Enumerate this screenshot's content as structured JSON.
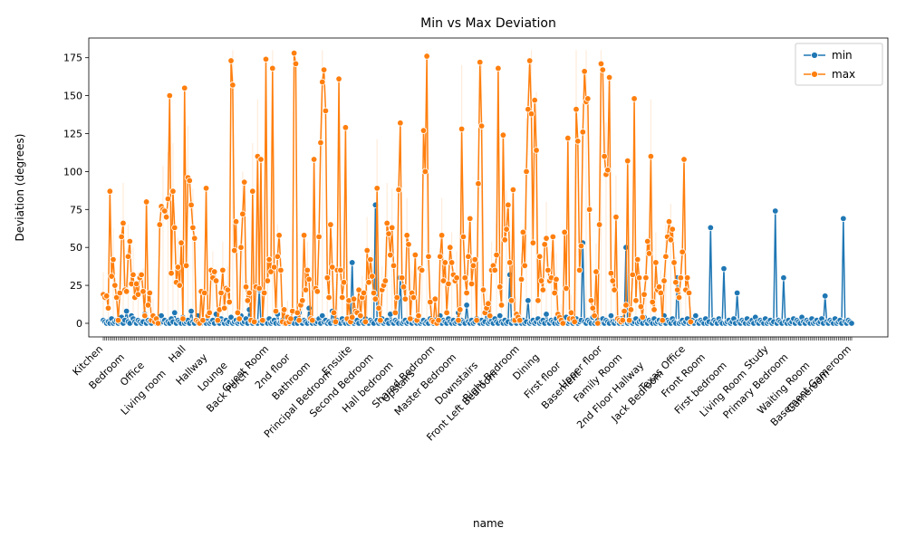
{
  "chart_data": {
    "type": "line",
    "title": "Min vs Max Deviation",
    "xlabel": "name",
    "ylabel": "Deviation (degrees)",
    "ylim": [
      -8.95,
      187.95
    ],
    "yticks": [
      0,
      25,
      50,
      75,
      100,
      125,
      150,
      175
    ],
    "grid": false,
    "legend_position": "top-right",
    "categories_sample": [
      "Kitchen",
      "Bedroom",
      "Office",
      "Living room",
      "Hall",
      "Hallway",
      "Lounge",
      "Back Porch",
      "Guest Room",
      "2nd floor",
      "Bathroom",
      "Principal Bedroom",
      "Ensuite",
      "Second Bedroom",
      "Hall bedroom",
      "Upstairs",
      "Shared Bedroom",
      "Master Bedroom",
      "Downstairs",
      "Front Left Bedroom",
      "Right Bedroom",
      "Dining",
      "First floor",
      "Basement",
      "Upper floor",
      "Family Room",
      "2nd Floor Hallway",
      "Jack Bedroom",
      "Texas Office",
      "Front Room",
      "First bedroom",
      "Living Room",
      "Study",
      "Primary Bedroom",
      "Waiting Room",
      "Gameroom",
      "Basement Gameroom"
    ],
    "series": [
      {
        "name": "min",
        "color": "#1f77b4",
        "values": [
          2,
          1,
          0,
          1,
          0,
          3,
          0,
          1,
          2,
          0,
          1,
          4,
          0,
          2,
          8,
          1,
          0,
          5,
          3,
          1,
          0,
          2,
          1,
          0,
          1,
          6,
          0,
          2,
          1,
          0,
          3,
          2,
          0,
          1,
          0,
          5,
          1,
          2,
          0,
          1,
          0,
          3,
          1,
          7,
          0,
          2,
          1,
          0,
          4,
          0,
          1,
          2,
          0,
          8,
          1,
          0,
          2,
          5,
          1,
          0,
          2,
          1,
          0,
          3,
          0,
          1,
          2,
          0,
          6,
          1,
          0,
          3,
          1,
          0,
          2,
          0,
          1,
          4,
          0,
          1,
          2,
          0,
          1,
          5,
          0,
          1,
          3,
          0,
          9,
          1,
          0,
          2,
          1,
          0,
          22,
          1,
          0,
          2,
          1,
          0,
          3,
          0,
          1,
          2,
          0,
          6,
          0,
          1,
          2,
          0,
          4,
          1,
          0,
          2,
          1,
          0,
          3,
          0,
          7,
          1,
          0,
          2,
          1,
          0,
          10,
          1,
          0,
          2,
          0,
          1,
          3,
          0,
          5,
          1,
          2,
          0,
          1,
          0,
          8,
          1,
          0,
          2,
          1,
          0,
          3,
          1,
          0,
          2,
          0,
          1,
          40,
          0,
          1,
          2,
          0,
          5,
          1,
          0,
          3,
          1,
          0,
          2,
          1,
          0,
          78,
          2,
          0,
          1,
          3,
          0,
          1,
          2,
          0,
          6,
          1,
          0,
          2,
          1,
          0,
          30,
          0,
          1,
          2,
          0,
          1,
          3,
          0,
          2,
          1,
          0,
          4,
          0,
          1,
          2,
          0,
          1,
          0,
          3,
          1,
          0,
          2,
          0,
          1,
          5,
          0,
          2,
          1,
          0,
          3,
          1,
          0,
          2,
          0,
          1,
          7,
          0,
          2,
          1,
          0,
          12,
          1,
          0,
          2,
          0,
          1,
          3,
          1,
          0,
          2,
          0,
          1,
          8,
          0,
          1,
          2,
          0,
          3,
          1,
          0,
          5,
          1,
          0,
          2,
          0,
          1,
          32,
          0,
          2,
          1,
          0,
          3,
          1,
          0,
          2,
          0,
          1,
          15,
          0,
          1,
          2,
          0,
          1,
          3,
          0,
          1,
          2,
          0,
          6,
          1,
          0,
          2,
          1,
          0,
          3,
          0,
          1,
          2,
          0,
          1,
          4,
          0,
          1,
          2,
          0,
          1,
          3,
          0,
          1,
          2,
          53,
          1,
          0,
          2,
          1,
          0,
          4,
          0,
          1,
          2,
          0,
          1,
          3,
          0,
          2,
          1,
          0,
          5,
          1,
          0,
          2,
          1,
          0,
          3,
          0,
          1,
          50,
          0,
          1,
          2,
          0,
          1,
          3,
          0,
          1,
          2,
          0,
          4,
          1,
          0,
          2,
          1,
          0,
          3,
          0,
          1,
          2,
          0,
          1,
          5,
          0,
          2,
          1,
          0,
          3,
          1,
          0,
          30,
          0,
          1,
          2,
          0,
          1,
          3,
          0,
          1,
          2,
          0,
          5,
          1,
          0,
          2,
          1,
          0,
          3,
          0,
          1,
          63,
          0,
          2,
          1,
          0,
          3,
          1,
          0,
          36,
          0,
          1,
          2,
          0,
          1,
          3,
          0,
          20,
          1,
          0,
          2,
          1,
          0,
          3,
          0,
          1,
          2,
          0,
          4,
          1,
          0,
          2,
          1,
          0,
          3,
          0,
          1,
          2,
          0,
          1,
          74,
          0,
          2,
          1,
          0,
          30,
          1,
          0,
          2,
          0,
          1,
          3,
          0,
          2,
          1,
          0,
          4,
          1,
          0,
          2,
          1,
          0,
          3,
          0,
          1,
          2,
          0,
          1,
          3,
          0,
          18,
          1,
          0,
          2,
          1,
          0,
          3,
          0,
          1,
          2,
          0,
          69,
          1,
          0,
          2,
          1,
          0
        ]
      },
      {
        "name": "max",
        "color": "#ff7f0e",
        "values": [
          19,
          17,
          18,
          10,
          87,
          31,
          42,
          25,
          17,
          2,
          20,
          57,
          66,
          22,
          21,
          44,
          54,
          26,
          32,
          17,
          26,
          19,
          30,
          32,
          21,
          5,
          80,
          12,
          20,
          2,
          5,
          1,
          3,
          0,
          65,
          77,
          75,
          74,
          70,
          82,
          150,
          33,
          87,
          63,
          27,
          37,
          25,
          53,
          3,
          155,
          38,
          96,
          94,
          78,
          63,
          56,
          2,
          1,
          0,
          21,
          2,
          20,
          89,
          5,
          7,
          35,
          30,
          34,
          28,
          2,
          9,
          20,
          35,
          10,
          23,
          22,
          14,
          173,
          157,
          48,
          67,
          7,
          3,
          50,
          72,
          93,
          24,
          15,
          20,
          2,
          87,
          1,
          24,
          110,
          23,
          108,
          2,
          20,
          174,
          28,
          42,
          34,
          168,
          37,
          8,
          44,
          58,
          35,
          1,
          9,
          0,
          4,
          1,
          3,
          8,
          178,
          171,
          7,
          2,
          12,
          15,
          58,
          22,
          35,
          29,
          3,
          2,
          108,
          23,
          21,
          57,
          119,
          159,
          167,
          140,
          30,
          17,
          65,
          37,
          7,
          1,
          35,
          161,
          35,
          17,
          27,
          129,
          3,
          15,
          1,
          4,
          16,
          8,
          7,
          22,
          5,
          17,
          20,
          1,
          48,
          27,
          42,
          31,
          20,
          16,
          89,
          10,
          2,
          22,
          25,
          28,
          66,
          59,
          45,
          63,
          38,
          7,
          17,
          88,
          132,
          30,
          24,
          16,
          58,
          52,
          3,
          20,
          17,
          45,
          2,
          5,
          36,
          35,
          127,
          100,
          176,
          44,
          14,
          2,
          1,
          16,
          0,
          2,
          44,
          58,
          28,
          40,
          7,
          26,
          50,
          40,
          32,
          28,
          30,
          2,
          9,
          128,
          57,
          30,
          20,
          44,
          69,
          26,
          38,
          42,
          2,
          92,
          172,
          130,
          22,
          7,
          10,
          13,
          5,
          35,
          38,
          35,
          45,
          168,
          24,
          12,
          124,
          55,
          62,
          78,
          40,
          15,
          88,
          2,
          6,
          4,
          2,
          29,
          60,
          38,
          100,
          141,
          173,
          138,
          53,
          147,
          114,
          15,
          44,
          28,
          22,
          52,
          56,
          35,
          28,
          30,
          57,
          20,
          29,
          6,
          4,
          2,
          0,
          60,
          23,
          122,
          3,
          7,
          3,
          1,
          141,
          120,
          35,
          51,
          126,
          166,
          146,
          148,
          75,
          15,
          10,
          5,
          34,
          0,
          65,
          171,
          167,
          110,
          98,
          101,
          162,
          33,
          28,
          22,
          70,
          3,
          2,
          1,
          2,
          8,
          12,
          107,
          2,
          9,
          32,
          148,
          15,
          42,
          30,
          11,
          4,
          19,
          30,
          54,
          46,
          110,
          14,
          9,
          40,
          22,
          24,
          20,
          2,
          28,
          44,
          57,
          67,
          55,
          62,
          40,
          27,
          22,
          17,
          30,
          47,
          108,
          22,
          30,
          20,
          1
        ]
      }
    ]
  }
}
